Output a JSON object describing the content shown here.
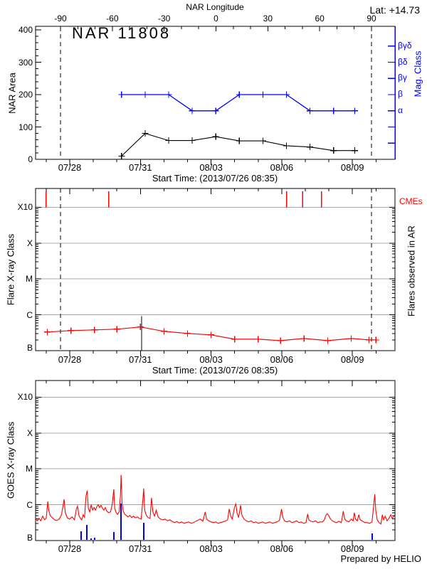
{
  "lat_label": "Lat: +14.73",
  "credit": "Prepared by HELIO",
  "start_time_label": "Start Time: (2013/07/26 08:35)",
  "colors": {
    "red": "#ff0000",
    "blue": "#0000ff",
    "black": "#000000",
    "grid_gray": "#a8a8a8",
    "background": "#ffffff"
  },
  "time_axis": {
    "tick_labels": [
      "07/28",
      "07/31",
      "08/03",
      "08/06",
      "08/09"
    ],
    "tick_t_days": [
      1.45,
      4.45,
      7.45,
      10.45,
      13.45
    ],
    "minor_tick_start_t": 0.45,
    "minor_tick_step_days": 1,
    "t_max_days": 15.26,
    "note_t_origin": "t = days from plot left edge; start label shown is 2013/07/26 08:35"
  },
  "chart_data": [
    {
      "id": "nar-area-panel",
      "type": "line",
      "title": "NAR 11808",
      "ylabel": "NAR Area",
      "ylim": [
        0,
        400
      ],
      "yticks": [
        0,
        100,
        200,
        300,
        400
      ],
      "y_minor_step": 20,
      "top_axis": {
        "title": "NAR Longitude",
        "ticks": [
          -90,
          -60,
          -30,
          0,
          30,
          60,
          90
        ],
        "minor_step": 10
      },
      "right_axis": {
        "title": "Mag. Class",
        "labels": [
          "βγδ",
          "βδ",
          "βγ",
          "β",
          "α"
        ],
        "levels": [
          350,
          300,
          250,
          200,
          150
        ],
        "extra_tick_levels": [
          100,
          50
        ]
      },
      "limb_dashed_lines_t": [
        1.06,
        14.26
      ],
      "series": [
        {
          "name": "area",
          "color": "black",
          "marker": "+",
          "t": [
            3.65,
            4.65,
            5.65,
            6.65,
            7.65,
            8.65,
            9.65,
            10.65,
            11.65,
            12.65,
            13.55
          ],
          "values": [
            10,
            80,
            58,
            58,
            70,
            57,
            57,
            42,
            38,
            27,
            27
          ]
        },
        {
          "name": "mag_class",
          "color": "blue",
          "marker": "+",
          "t": [
            3.65,
            4.65,
            5.65,
            6.65,
            7.65,
            8.65,
            9.65,
            10.65,
            11.65,
            12.65,
            13.55
          ],
          "classes": [
            "β",
            "β",
            "β",
            "α",
            "α",
            "β",
            "β",
            "β",
            "α",
            "α",
            "α"
          ],
          "class_levels": {
            "α": 150,
            "β": 200,
            "βγ": 250,
            "βδ": 300,
            "βγδ": 350
          }
        }
      ]
    },
    {
      "id": "flare-xray-panel",
      "type": "line",
      "ylabel": "Flare X-ray Class",
      "right_label": "Flares observed in AR",
      "cme_label": "CMEs",
      "yticks": [
        "X10",
        "X",
        "M",
        "C",
        "B"
      ],
      "y_scale": "log10 decades above B1 (B=0, C=1, M=2, X=3, X10=4)",
      "flare_series": {
        "color": "red",
        "marker": "+",
        "t": [
          0.5,
          1.5,
          2.5,
          3.45,
          4.45,
          5.45,
          6.45,
          7.45,
          8.45,
          9.45,
          10.4,
          11.4,
          12.4,
          13.4,
          14.15,
          14.45
        ],
        "log_b": [
          0.52,
          0.56,
          0.58,
          0.6,
          0.66,
          0.54,
          0.48,
          0.44,
          0.32,
          0.32,
          0.28,
          0.34,
          0.28,
          0.34,
          0.3,
          0.3
        ]
      },
      "cme_times_t": [
        0.45,
        3.11,
        10.66,
        11.33,
        12.14
      ],
      "event_line_t": 4.5,
      "event_line_log_b_top": 0.96,
      "limb_dashed_lines_t": [
        1.06,
        14.26
      ]
    },
    {
      "id": "goes-xray-panel",
      "type": "line",
      "ylabel": "GOES X-ray Class",
      "yticks": [
        "X10",
        "X",
        "M",
        "C",
        "B"
      ],
      "y_scale": "log10 decades above B1 (B=0, C=1, M=2, X=3, X10=4)",
      "goes_series": {
        "color": "red",
        "points": [
          [
            0.0,
            0.6
          ],
          [
            0.08,
            0.55
          ],
          [
            0.15,
            0.62
          ],
          [
            0.22,
            0.55
          ],
          [
            0.3,
            0.68
          ],
          [
            0.38,
            0.58
          ],
          [
            0.45,
            0.62
          ],
          [
            0.52,
            1.09
          ],
          [
            0.56,
            0.85
          ],
          [
            0.62,
            0.7
          ],
          [
            0.7,
            0.64
          ],
          [
            0.8,
            0.58
          ],
          [
            0.9,
            0.56
          ],
          [
            1.0,
            0.6
          ],
          [
            1.1,
            0.72
          ],
          [
            1.21,
            1.15
          ],
          [
            1.26,
            0.78
          ],
          [
            1.35,
            0.63
          ],
          [
            1.45,
            0.6
          ],
          [
            1.55,
            0.66
          ],
          [
            1.65,
            0.58
          ],
          [
            1.73,
            0.88
          ],
          [
            1.78,
            0.96
          ],
          [
            1.84,
            0.7
          ],
          [
            1.9,
            0.62
          ],
          [
            1.96,
            0.58
          ],
          [
            2.02,
            0.72
          ],
          [
            2.08,
            0.65
          ],
          [
            2.14,
            1.23
          ],
          [
            2.19,
            1.39
          ],
          [
            2.24,
            0.9
          ],
          [
            2.3,
            0.8
          ],
          [
            2.36,
            1.0
          ],
          [
            2.42,
            0.85
          ],
          [
            2.48,
            0.92
          ],
          [
            2.54,
            0.85
          ],
          [
            2.6,
            0.95
          ],
          [
            2.66,
            1.0
          ],
          [
            2.72,
            0.92
          ],
          [
            2.78,
            0.98
          ],
          [
            2.84,
            0.9
          ],
          [
            2.9,
            0.85
          ],
          [
            2.96,
            0.92
          ],
          [
            3.02,
            0.82
          ],
          [
            3.1,
            0.78
          ],
          [
            3.18,
            0.8
          ],
          [
            3.25,
            1.0
          ],
          [
            3.32,
            1.43
          ],
          [
            3.36,
            0.9
          ],
          [
            3.42,
            0.78
          ],
          [
            3.48,
            0.73
          ],
          [
            3.55,
            0.8
          ],
          [
            3.6,
            1.25
          ],
          [
            3.63,
            1.83
          ],
          [
            3.67,
            1.05
          ],
          [
            3.72,
            0.82
          ],
          [
            3.78,
            0.74
          ],
          [
            3.85,
            0.7
          ],
          [
            3.92,
            0.66
          ],
          [
            4.0,
            0.7
          ],
          [
            4.08,
            0.64
          ],
          [
            4.16,
            0.68
          ],
          [
            4.24,
            0.63
          ],
          [
            4.32,
            0.66
          ],
          [
            4.4,
            0.62
          ],
          [
            4.48,
            0.6
          ],
          [
            4.55,
            1.1
          ],
          [
            4.59,
            1.45
          ],
          [
            4.63,
            0.85
          ],
          [
            4.7,
            0.7
          ],
          [
            4.78,
            0.64
          ],
          [
            4.86,
            0.62
          ],
          [
            4.92,
            1.19
          ],
          [
            4.98,
            0.8
          ],
          [
            5.05,
            0.68
          ],
          [
            5.12,
            0.85
          ],
          [
            5.2,
            0.66
          ],
          [
            5.3,
            0.6
          ],
          [
            5.4,
            0.58
          ],
          [
            5.5,
            0.6
          ],
          [
            5.6,
            0.55
          ],
          [
            5.7,
            0.58
          ],
          [
            5.8,
            0.53
          ],
          [
            5.9,
            0.5
          ],
          [
            6.0,
            0.53
          ],
          [
            6.1,
            0.49
          ],
          [
            6.2,
            0.52
          ],
          [
            6.3,
            0.48
          ],
          [
            6.4,
            0.5
          ],
          [
            6.5,
            0.52
          ],
          [
            6.6,
            0.48
          ],
          [
            6.7,
            0.5
          ],
          [
            6.8,
            0.54
          ],
          [
            6.9,
            0.57
          ],
          [
            7.0,
            0.6
          ],
          [
            7.1,
            0.54
          ],
          [
            7.2,
            0.8
          ],
          [
            7.26,
            0.6
          ],
          [
            7.35,
            0.55
          ],
          [
            7.45,
            0.52
          ],
          [
            7.55,
            0.5
          ],
          [
            7.65,
            0.52
          ],
          [
            7.75,
            0.48
          ],
          [
            7.85,
            0.5
          ],
          [
            7.95,
            0.52
          ],
          [
            8.05,
            0.54
          ],
          [
            8.15,
            0.58
          ],
          [
            8.22,
            0.88
          ],
          [
            8.28,
            0.68
          ],
          [
            8.35,
            0.6
          ],
          [
            8.44,
            0.92
          ],
          [
            8.5,
            1.02
          ],
          [
            8.55,
            0.78
          ],
          [
            8.62,
            0.64
          ],
          [
            8.7,
            0.98
          ],
          [
            8.76,
            0.7
          ],
          [
            8.85,
            0.6
          ],
          [
            8.95,
            0.55
          ],
          [
            9.05,
            0.52
          ],
          [
            9.15,
            0.55
          ],
          [
            9.25,
            0.5
          ],
          [
            9.35,
            0.52
          ],
          [
            9.45,
            0.48
          ],
          [
            9.55,
            0.5
          ],
          [
            9.65,
            0.52
          ],
          [
            9.75,
            0.48
          ],
          [
            9.85,
            0.5
          ],
          [
            9.95,
            0.52
          ],
          [
            10.05,
            0.48
          ],
          [
            10.15,
            0.5
          ],
          [
            10.25,
            0.52
          ],
          [
            10.35,
            0.56
          ],
          [
            10.44,
            0.88
          ],
          [
            10.5,
            0.64
          ],
          [
            10.58,
            0.54
          ],
          [
            10.68,
            0.52
          ],
          [
            10.78,
            0.55
          ],
          [
            10.88,
            0.5
          ],
          [
            10.98,
            0.52
          ],
          [
            11.08,
            0.55
          ],
          [
            11.18,
            0.5
          ],
          [
            11.28,
            0.52
          ],
          [
            11.38,
            0.48
          ],
          [
            11.48,
            0.5
          ],
          [
            11.55,
            0.74
          ],
          [
            11.6,
            0.58
          ],
          [
            11.68,
            0.54
          ],
          [
            11.78,
            0.52
          ],
          [
            11.88,
            0.55
          ],
          [
            11.98,
            0.5
          ],
          [
            12.08,
            0.52
          ],
          [
            12.18,
            0.52
          ],
          [
            12.26,
            0.58
          ],
          [
            12.32,
            0.7
          ],
          [
            12.38,
            0.75
          ],
          [
            12.44,
            0.7
          ],
          [
            12.5,
            0.62
          ],
          [
            12.58,
            0.56
          ],
          [
            12.68,
            0.52
          ],
          [
            12.78,
            0.5
          ],
          [
            12.88,
            0.54
          ],
          [
            12.98,
            0.5
          ],
          [
            13.06,
            0.82
          ],
          [
            13.12,
            0.6
          ],
          [
            13.2,
            0.55
          ],
          [
            13.3,
            0.52
          ],
          [
            13.4,
            0.6
          ],
          [
            13.48,
            0.55
          ],
          [
            13.53,
            0.78
          ],
          [
            13.58,
            0.6
          ],
          [
            13.66,
            0.55
          ],
          [
            13.72,
            0.72
          ],
          [
            13.78,
            0.58
          ],
          [
            13.88,
            0.54
          ],
          [
            13.98,
            0.5
          ],
          [
            14.08,
            0.5
          ],
          [
            14.18,
            0.48
          ],
          [
            14.28,
            0.52
          ],
          [
            14.4,
            1.29
          ],
          [
            14.44,
            0.85
          ],
          [
            14.5,
            0.58
          ],
          [
            14.58,
            0.5
          ],
          [
            14.66,
            0.46
          ],
          [
            14.72,
            0.72
          ],
          [
            14.78,
            0.58
          ],
          [
            14.84,
            0.68
          ],
          [
            14.92,
            0.55
          ],
          [
            15.0,
            0.62
          ],
          [
            15.08,
            0.72
          ],
          [
            15.14,
            0.62
          ],
          [
            15.22,
            0.68
          ]
        ]
      },
      "particle_bars": {
        "color": "blue",
        "points": [
          [
            1.93,
            0.26
          ],
          [
            2.18,
            0.44
          ],
          [
            2.36,
            0.06
          ],
          [
            2.51,
            0.08
          ],
          [
            3.32,
            0.24
          ],
          [
            3.63,
            1.03
          ],
          [
            4.59,
            0.5
          ],
          [
            14.29,
            0.2
          ]
        ]
      }
    }
  ]
}
